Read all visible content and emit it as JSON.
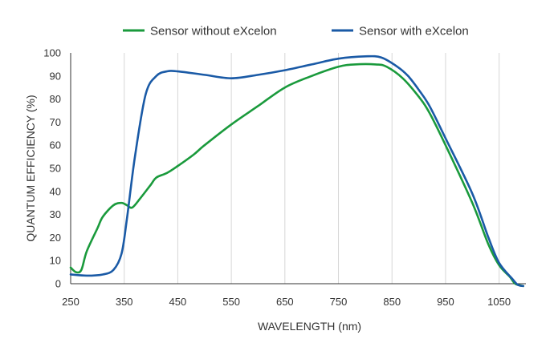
{
  "chart_data": {
    "type": "line",
    "xlabel": "WAVELENGTH (nm)",
    "ylabel": "QUANTUM EFFICIENCY (%)",
    "xlim": [
      250,
      1100
    ],
    "ylim": [
      0,
      100
    ],
    "x_ticks": [
      250,
      350,
      450,
      550,
      650,
      750,
      850,
      950,
      1050
    ],
    "y_ticks": [
      0,
      10,
      20,
      30,
      40,
      50,
      60,
      70,
      80,
      90,
      100
    ],
    "grid": "vertical",
    "legend_position": "top",
    "series": [
      {
        "name": "Sensor without eXcelon",
        "color": "#1a9a3c",
        "points": [
          [
            250,
            7
          ],
          [
            260,
            5
          ],
          [
            270,
            6
          ],
          [
            280,
            14
          ],
          [
            300,
            24
          ],
          [
            310,
            29
          ],
          [
            330,
            34
          ],
          [
            345,
            35
          ],
          [
            355,
            34
          ],
          [
            365,
            33
          ],
          [
            380,
            37
          ],
          [
            400,
            43
          ],
          [
            410,
            46
          ],
          [
            430,
            48
          ],
          [
            450,
            51
          ],
          [
            480,
            56
          ],
          [
            500,
            60
          ],
          [
            550,
            69
          ],
          [
            600,
            77
          ],
          [
            650,
            85
          ],
          [
            700,
            90
          ],
          [
            750,
            94
          ],
          [
            780,
            95
          ],
          [
            820,
            95
          ],
          [
            840,
            94
          ],
          [
            870,
            89
          ],
          [
            900,
            81
          ],
          [
            920,
            74
          ],
          [
            950,
            60
          ],
          [
            1000,
            35
          ],
          [
            1030,
            17
          ],
          [
            1050,
            8
          ],
          [
            1070,
            3
          ],
          [
            1080,
            0
          ],
          [
            1095,
            -1
          ]
        ]
      },
      {
        "name": "Sensor with eXcelon",
        "color": "#1a5aa6",
        "points": [
          [
            250,
            4
          ],
          [
            280,
            3.5
          ],
          [
            310,
            4
          ],
          [
            330,
            6
          ],
          [
            345,
            13
          ],
          [
            355,
            28
          ],
          [
            370,
            55
          ],
          [
            390,
            82
          ],
          [
            410,
            90
          ],
          [
            430,
            92
          ],
          [
            450,
            92
          ],
          [
            500,
            90.5
          ],
          [
            550,
            89
          ],
          [
            600,
            90.5
          ],
          [
            650,
            92.5
          ],
          [
            700,
            95
          ],
          [
            750,
            97.5
          ],
          [
            800,
            98.5
          ],
          [
            830,
            98
          ],
          [
            860,
            94
          ],
          [
            880,
            90
          ],
          [
            900,
            84
          ],
          [
            920,
            77
          ],
          [
            950,
            63
          ],
          [
            1000,
            39
          ],
          [
            1030,
            20
          ],
          [
            1050,
            9
          ],
          [
            1075,
            2
          ],
          [
            1085,
            -0.5
          ],
          [
            1095,
            -1
          ]
        ]
      }
    ]
  }
}
